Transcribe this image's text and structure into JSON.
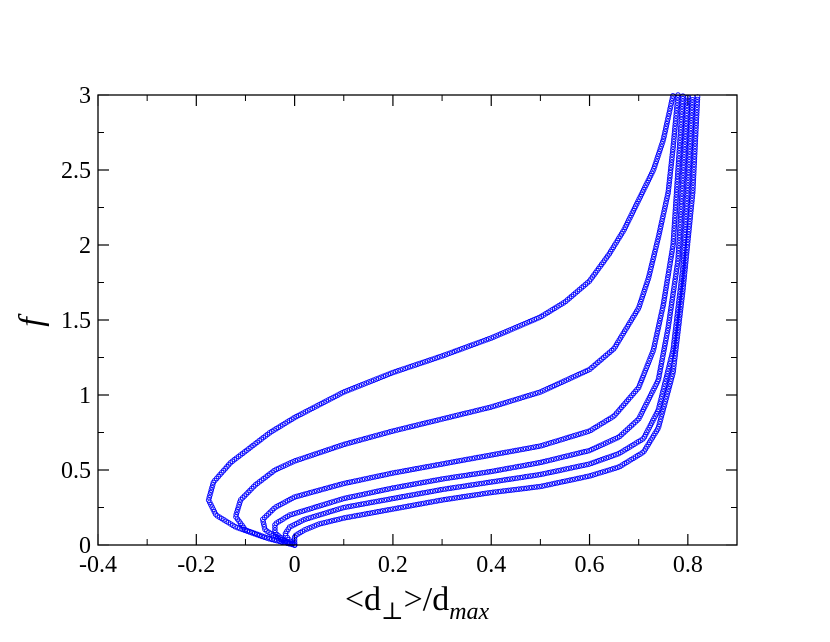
{
  "chart_data": {
    "type": "scatter",
    "xlabel": {
      "pre": "<d",
      "sub1": "⊥",
      "mid": ">/d",
      "sub2": "max"
    },
    "ylabel": "f",
    "xlim": [
      -0.4,
      0.9
    ],
    "ylim": [
      0,
      3
    ],
    "x_ticks": [
      -0.4,
      -0.2,
      0,
      0.2,
      0.4,
      0.6,
      0.8
    ],
    "x_tick_labels": [
      "-0.4",
      "-0.2",
      "0",
      "0.2",
      "0.4",
      "0.6",
      "0.8"
    ],
    "y_ticks": [
      0,
      0.5,
      1,
      1.5,
      2,
      2.5,
      3
    ],
    "y_tick_labels": [
      "0",
      "0.5",
      "1",
      "1.5",
      "2",
      "2.5",
      "3"
    ],
    "marker": "open-circle",
    "color": "#0000ff",
    "grid": false,
    "series": [
      {
        "values": [
          [
            0.0,
            0.0
          ],
          [
            -0.06,
            0.05
          ],
          [
            -0.12,
            0.12
          ],
          [
            -0.16,
            0.2
          ],
          [
            -0.175,
            0.3
          ],
          [
            -0.165,
            0.42
          ],
          [
            -0.13,
            0.55
          ],
          [
            -0.05,
            0.75
          ],
          [
            0.0,
            0.85
          ],
          [
            0.1,
            1.02
          ],
          [
            0.2,
            1.15
          ],
          [
            0.3,
            1.26
          ],
          [
            0.4,
            1.38
          ],
          [
            0.5,
            1.52
          ],
          [
            0.55,
            1.62
          ],
          [
            0.6,
            1.76
          ],
          [
            0.64,
            1.94
          ],
          [
            0.67,
            2.1
          ],
          [
            0.7,
            2.3
          ],
          [
            0.73,
            2.5
          ],
          [
            0.75,
            2.7
          ],
          [
            0.77,
            3.0
          ]
        ]
      },
      {
        "values": [
          [
            0.0,
            0.0
          ],
          [
            -0.05,
            0.04
          ],
          [
            -0.1,
            0.1
          ],
          [
            -0.12,
            0.19
          ],
          [
            -0.11,
            0.3
          ],
          [
            -0.08,
            0.4
          ],
          [
            -0.04,
            0.5
          ],
          [
            0.0,
            0.56
          ],
          [
            0.1,
            0.67
          ],
          [
            0.2,
            0.76
          ],
          [
            0.3,
            0.84
          ],
          [
            0.4,
            0.92
          ],
          [
            0.5,
            1.02
          ],
          [
            0.6,
            1.17
          ],
          [
            0.65,
            1.31
          ],
          [
            0.7,
            1.58
          ],
          [
            0.72,
            1.78
          ],
          [
            0.74,
            2.05
          ],
          [
            0.76,
            2.35
          ],
          [
            0.77,
            2.65
          ],
          [
            0.78,
            3.0
          ]
        ]
      },
      {
        "values": [
          [
            0.0,
            0.0
          ],
          [
            -0.03,
            0.04
          ],
          [
            -0.06,
            0.1
          ],
          [
            -0.065,
            0.17
          ],
          [
            -0.04,
            0.25
          ],
          [
            0.0,
            0.32
          ],
          [
            0.1,
            0.41
          ],
          [
            0.2,
            0.48
          ],
          [
            0.3,
            0.54
          ],
          [
            0.4,
            0.6
          ],
          [
            0.5,
            0.66
          ],
          [
            0.6,
            0.76
          ],
          [
            0.65,
            0.86
          ],
          [
            0.7,
            1.05
          ],
          [
            0.73,
            1.3
          ],
          [
            0.75,
            1.6
          ],
          [
            0.77,
            2.0
          ],
          [
            0.78,
            2.5
          ],
          [
            0.79,
            3.0
          ]
        ]
      },
      {
        "values": [
          [
            0.0,
            0.0
          ],
          [
            -0.02,
            0.03
          ],
          [
            -0.04,
            0.08
          ],
          [
            -0.04,
            0.14
          ],
          [
            -0.01,
            0.2
          ],
          [
            0.05,
            0.26
          ],
          [
            0.1,
            0.31
          ],
          [
            0.2,
            0.38
          ],
          [
            0.3,
            0.44
          ],
          [
            0.4,
            0.49
          ],
          [
            0.5,
            0.55
          ],
          [
            0.6,
            0.63
          ],
          [
            0.66,
            0.72
          ],
          [
            0.7,
            0.84
          ],
          [
            0.74,
            1.1
          ],
          [
            0.76,
            1.45
          ],
          [
            0.78,
            1.9
          ],
          [
            0.79,
            2.45
          ],
          [
            0.8,
            3.0
          ]
        ]
      },
      {
        "values": [
          [
            0.0,
            0.0
          ],
          [
            -0.01,
            0.03
          ],
          [
            -0.02,
            0.07
          ],
          [
            -0.01,
            0.12
          ],
          [
            0.02,
            0.17
          ],
          [
            0.05,
            0.2
          ],
          [
            0.1,
            0.25
          ],
          [
            0.2,
            0.31
          ],
          [
            0.3,
            0.37
          ],
          [
            0.4,
            0.42
          ],
          [
            0.5,
            0.47
          ],
          [
            0.6,
            0.54
          ],
          [
            0.66,
            0.61
          ],
          [
            0.71,
            0.71
          ],
          [
            0.74,
            0.9
          ],
          [
            0.77,
            1.3
          ],
          [
            0.79,
            1.85
          ],
          [
            0.8,
            2.4
          ],
          [
            0.81,
            3.0
          ]
        ]
      },
      {
        "values": [
          [
            0.0,
            0.0
          ],
          [
            0.0,
            0.03
          ],
          [
            0.0,
            0.06
          ],
          [
            0.02,
            0.1
          ],
          [
            0.05,
            0.14
          ],
          [
            0.1,
            0.18
          ],
          [
            0.2,
            0.24
          ],
          [
            0.3,
            0.3
          ],
          [
            0.4,
            0.35
          ],
          [
            0.5,
            0.39
          ],
          [
            0.6,
            0.46
          ],
          [
            0.66,
            0.52
          ],
          [
            0.71,
            0.62
          ],
          [
            0.74,
            0.78
          ],
          [
            0.77,
            1.15
          ],
          [
            0.79,
            1.7
          ],
          [
            0.81,
            2.35
          ],
          [
            0.82,
            3.0
          ]
        ]
      }
    ]
  }
}
